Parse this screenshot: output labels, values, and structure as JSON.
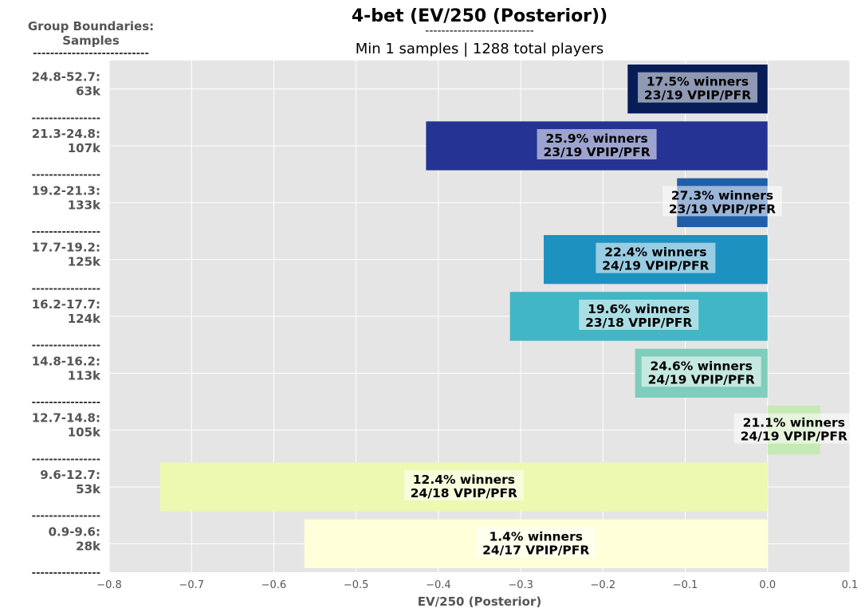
{
  "chart_data": {
    "type": "bar",
    "orientation": "horizontal",
    "title": "4-bet (EV/250 (Posterior))",
    "title_rule": "---------------------------",
    "subtitle": "Min 1 samples | 1288 total players",
    "xlabel": "EV/250 (Posterior)",
    "ylabel_header": "Group Boundaries:\nSamples",
    "ylabel_header_rule": "---------------------------",
    "group_separator": "----------------",
    "xlim": [
      -0.8,
      0.1
    ],
    "xticks": [
      "−0.8",
      "−0.7",
      "−0.6",
      "−0.5",
      "−0.4",
      "−0.3",
      "−0.2",
      "−0.1",
      "0.0",
      "0.1"
    ],
    "xtick_values": [
      -0.8,
      -0.7,
      -0.6,
      -0.5,
      -0.4,
      -0.3,
      -0.2,
      -0.1,
      0.0,
      0.1
    ],
    "grid": true,
    "background": "#e5e5e5",
    "bars": [
      {
        "range": "24.8-52.7:",
        "samples": "63k",
        "value": -0.17,
        "label1": "17.5% winners",
        "label2": "23/19 VPIP/PFR",
        "color": "#081d58"
      },
      {
        "range": "21.3-24.8:",
        "samples": "107k",
        "value": -0.415,
        "label1": "25.9% winners",
        "label2": "23/19 VPIP/PFR",
        "color": "#253494"
      },
      {
        "range": "19.2-21.3:",
        "samples": "133k",
        "value": -0.11,
        "label1": "27.3% winners",
        "label2": "23/19 VPIP/PFR",
        "color": "#225ea8"
      },
      {
        "range": "17.7-19.2:",
        "samples": "125k",
        "value": -0.272,
        "label1": "22.4% winners",
        "label2": "24/19 VPIP/PFR",
        "color": "#1d91c0"
      },
      {
        "range": "16.2-17.7:",
        "samples": "124k",
        "value": -0.313,
        "label1": "19.6% winners",
        "label2": "23/18 VPIP/PFR",
        "color": "#41b6c4"
      },
      {
        "range": "14.8-16.2:",
        "samples": "113k",
        "value": -0.161,
        "label1": "24.6% winners",
        "label2": "24/19 VPIP/PFR",
        "color": "#7fcdbb"
      },
      {
        "range": "12.7-14.8:",
        "samples": "105k",
        "value": 0.064,
        "label1": "21.1% winners",
        "label2": "24/19 VPIP/PFR",
        "color": "#c7e9b4"
      },
      {
        "range": "9.6-12.7:",
        "samples": "53k",
        "value": -0.738,
        "label1": "12.4% winners",
        "label2": "24/18 VPIP/PFR",
        "color": "#edf8b1"
      },
      {
        "range": "0.9-9.6:",
        "samples": "28k",
        "value": -0.563,
        "label1": "1.4% winners",
        "label2": "24/17 VPIP/PFR",
        "color": "#ffffd9"
      }
    ]
  }
}
